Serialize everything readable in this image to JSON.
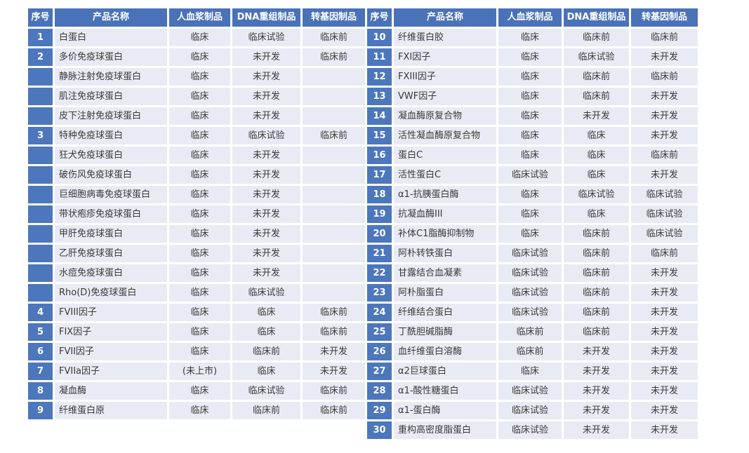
{
  "table": {
    "columns": [
      "序号",
      "产品名称",
      "人血浆制品",
      "DNA重组制品",
      "转基因制品"
    ],
    "colors": {
      "header_bg": "#4a72b8",
      "index_bg": "#4d77bd",
      "row_bg": "#e9ebf4",
      "text": "#3a3a3a",
      "header_text": "#ffffff"
    },
    "left_rows": [
      {
        "num": "1",
        "name": "白蛋白",
        "plasma": "临床",
        "dna": "临床试验",
        "transgenic": "临床前"
      },
      {
        "num": "2",
        "name": "多价免疫球蛋白",
        "plasma": "临床",
        "dna": "未开发",
        "transgenic": "临床前"
      },
      {
        "num": "",
        "name": "静脉注射免疫球蛋白",
        "plasma": "临床",
        "dna": "未开发",
        "transgenic": ""
      },
      {
        "num": "",
        "name": "肌注免疫球蛋白",
        "plasma": "临床",
        "dna": "未开发",
        "transgenic": ""
      },
      {
        "num": "",
        "name": "皮下注射免疫球蛋白",
        "plasma": "临床",
        "dna": "未开发",
        "transgenic": ""
      },
      {
        "num": "3",
        "name": "特种免疫球蛋白",
        "plasma": "临床",
        "dna": "临床试验",
        "transgenic": "临床前"
      },
      {
        "num": "",
        "name": "狂犬免疫球蛋白",
        "plasma": "临床",
        "dna": "未开发",
        "transgenic": ""
      },
      {
        "num": "",
        "name": "破伤风免疫球蛋白",
        "plasma": "临床",
        "dna": "未开发",
        "transgenic": ""
      },
      {
        "num": "",
        "name": "巨细胞病毒免疫球蛋白",
        "plasma": "临床",
        "dna": "未开发",
        "transgenic": ""
      },
      {
        "num": "",
        "name": "带状疱疹免疫球蛋白",
        "plasma": "临床",
        "dna": "未开发",
        "transgenic": ""
      },
      {
        "num": "",
        "name": "甲肝免疫球蛋白",
        "plasma": "临床",
        "dna": "未开发",
        "transgenic": ""
      },
      {
        "num": "",
        "name": "乙肝免疫球蛋白",
        "plasma": "临床",
        "dna": "未开发",
        "transgenic": ""
      },
      {
        "num": "",
        "name": "水痘免疫球蛋白",
        "plasma": "临床",
        "dna": "未开发",
        "transgenic": ""
      },
      {
        "num": "",
        "name": "Rho(D)免疫球蛋白",
        "plasma": "临床",
        "dna": "临床试验",
        "transgenic": ""
      },
      {
        "num": "4",
        "name": "FVIII因子",
        "plasma": "临床",
        "dna": "临床",
        "transgenic": "临床前"
      },
      {
        "num": "5",
        "name": "FIX因子",
        "plasma": "临床",
        "dna": "临床",
        "transgenic": "临床前"
      },
      {
        "num": "6",
        "name": "FVII因子",
        "plasma": "临床",
        "dna": "临床前",
        "transgenic": "未开发"
      },
      {
        "num": "7",
        "name": "FVIIa因子",
        "plasma": "(未上市)",
        "dna": "临床",
        "transgenic": "未开发"
      },
      {
        "num": "8",
        "name": "凝血酶",
        "plasma": "临床",
        "dna": "临床试验",
        "transgenic": "临床前"
      },
      {
        "num": "9",
        "name": "纤维蛋白原",
        "plasma": "临床",
        "dna": "临床前",
        "transgenic": "临床前"
      }
    ],
    "right_rows": [
      {
        "num": "10",
        "name": "纤维蛋白胶",
        "plasma": "临床",
        "dna": "临床前",
        "transgenic": "临床前"
      },
      {
        "num": "11",
        "name": "FXI因子",
        "plasma": "临床",
        "dna": "临床试验",
        "transgenic": "未开发"
      },
      {
        "num": "12",
        "name": "FXIII因子",
        "plasma": "临床",
        "dna": "临床前",
        "transgenic": "临床前"
      },
      {
        "num": "13",
        "name": "VWF因子",
        "plasma": "临床",
        "dna": "临床前",
        "transgenic": "未开发"
      },
      {
        "num": "14",
        "name": "凝血酶原复合物",
        "plasma": "临床",
        "dna": "未开发",
        "transgenic": "未开发"
      },
      {
        "num": "15",
        "name": "活性凝血酶原复合物",
        "plasma": "临床",
        "dna": "临床",
        "transgenic": "未开发"
      },
      {
        "num": "16",
        "name": "蛋白C",
        "plasma": "临床",
        "dna": "临床",
        "transgenic": "临床前"
      },
      {
        "num": "17",
        "name": "活性蛋白C",
        "plasma": "临床试验",
        "dna": "临床",
        "transgenic": "未开发"
      },
      {
        "num": "18",
        "name": "α1-抗胰蛋白酶",
        "plasma": "临床",
        "dna": "临床试验",
        "transgenic": "临床试验"
      },
      {
        "num": "19",
        "name": "抗凝血酶III",
        "plasma": "临床",
        "dna": "临床",
        "transgenic": "临床试验"
      },
      {
        "num": "20",
        "name": "补体C1脂酶抑制物",
        "plasma": "临床",
        "dna": "临床前",
        "transgenic": "临床试验"
      },
      {
        "num": "21",
        "name": "阿朴转铁蛋白",
        "plasma": "临床试验",
        "dna": "临床前",
        "transgenic": "临床前"
      },
      {
        "num": "22",
        "name": "甘露结合血凝素",
        "plasma": "临床试验",
        "dna": "临床前",
        "transgenic": "未开发"
      },
      {
        "num": "23",
        "name": "阿朴脂蛋白",
        "plasma": "临床试验",
        "dna": "临床前",
        "transgenic": "未开发"
      },
      {
        "num": "24",
        "name": "纤维结合蛋白",
        "plasma": "临床试验",
        "dna": "临床前",
        "transgenic": "未开发"
      },
      {
        "num": "25",
        "name": "丁酰胆碱脂酶",
        "plasma": "临床前",
        "dna": "临床前",
        "transgenic": "未开发"
      },
      {
        "num": "26",
        "name": "血纤维蛋白溶酶",
        "plasma": "临床前",
        "dna": "未开发",
        "transgenic": "未开发"
      },
      {
        "num": "27",
        "name": "α2巨球蛋白",
        "plasma": "临床",
        "dna": "未开发",
        "transgenic": "未开发"
      },
      {
        "num": "28",
        "name": "α1-酸性糖蛋白",
        "plasma": "临床试验",
        "dna": "未开发",
        "transgenic": "未开发"
      },
      {
        "num": "29",
        "name": "α1-蛋白酶",
        "plasma": "临床试验",
        "dna": "未开发",
        "transgenic": "未开发"
      },
      {
        "num": "30",
        "name": "重构高密度脂蛋白",
        "plasma": "临床试验",
        "dna": "未开发",
        "transgenic": "未开发"
      }
    ]
  }
}
